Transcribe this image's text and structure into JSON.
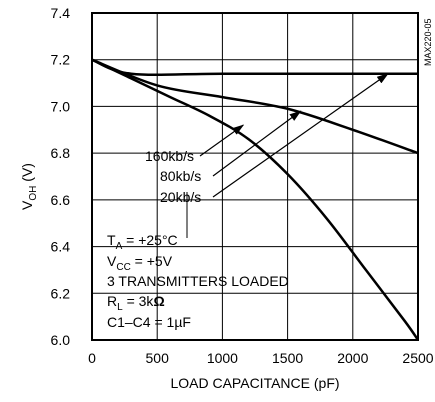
{
  "chart_data": {
    "type": "line",
    "xlabel": "LOAD CAPACITANCE (pF)",
    "ylabel": "V",
    "ylabel_sub": "OH",
    "ylabel_unit": " (V)",
    "xlim": [
      0,
      2500
    ],
    "ylim": [
      6.0,
      7.4
    ],
    "xticks": [
      0,
      500,
      1000,
      1500,
      2000,
      2500
    ],
    "xtick_labels": [
      "0",
      "500",
      "1000",
      "1500",
      "2000",
      "2500"
    ],
    "yticks": [
      6.0,
      6.2,
      6.4,
      6.6,
      6.8,
      7.0,
      7.2,
      7.4
    ],
    "ytick_labels": [
      "6.0",
      "6.2",
      "6.4",
      "6.6",
      "6.8",
      "7.0",
      "7.2",
      "7.4"
    ],
    "figure_code": "MAX220-05",
    "series": [
      {
        "name": "20kb/s",
        "x": [
          0,
          300,
          1000,
          2000,
          2500
        ],
        "y": [
          7.2,
          7.14,
          7.14,
          7.14,
          7.14
        ]
      },
      {
        "name": "80kb/s",
        "x": [
          0,
          500,
          1000,
          1500,
          2000,
          2500
        ],
        "y": [
          7.2,
          7.09,
          7.04,
          6.99,
          6.9,
          6.8
        ]
      },
      {
        "name": "160kb/s",
        "x": [
          0,
          300,
          600,
          900,
          1200,
          1500,
          1800,
          2100,
          2400,
          2500
        ],
        "y": [
          7.2,
          7.12,
          7.04,
          6.96,
          6.86,
          6.71,
          6.52,
          6.3,
          6.08,
          6.0
        ]
      }
    ],
    "series_labels": [
      {
        "text": "160kb/s",
        "series": "160kb/s",
        "arrow_to": [
          1160,
          6.92
        ]
      },
      {
        "text": "80kb/s",
        "series": "80kb/s",
        "arrow_to": [
          1600,
          6.98
        ]
      },
      {
        "text": "20kb/s",
        "series": "20kb/s",
        "arrow_to": [
          2270,
          7.14
        ]
      }
    ],
    "conditions": {
      "ta_main": "T",
      "ta_sub": "A",
      "ta_rest": " = +25°C",
      "vcc_main": "V",
      "vcc_sub": "CC",
      "vcc_rest": " = +5V",
      "transmitters": "3 TRANSMITTERS LOADED",
      "rl_main": "R",
      "rl_sub": "L",
      "rl_rest": " = 3k",
      "rl_unit": "Ω",
      "cap": "C1–C4 = 1",
      "cap_unit": "µF"
    }
  }
}
